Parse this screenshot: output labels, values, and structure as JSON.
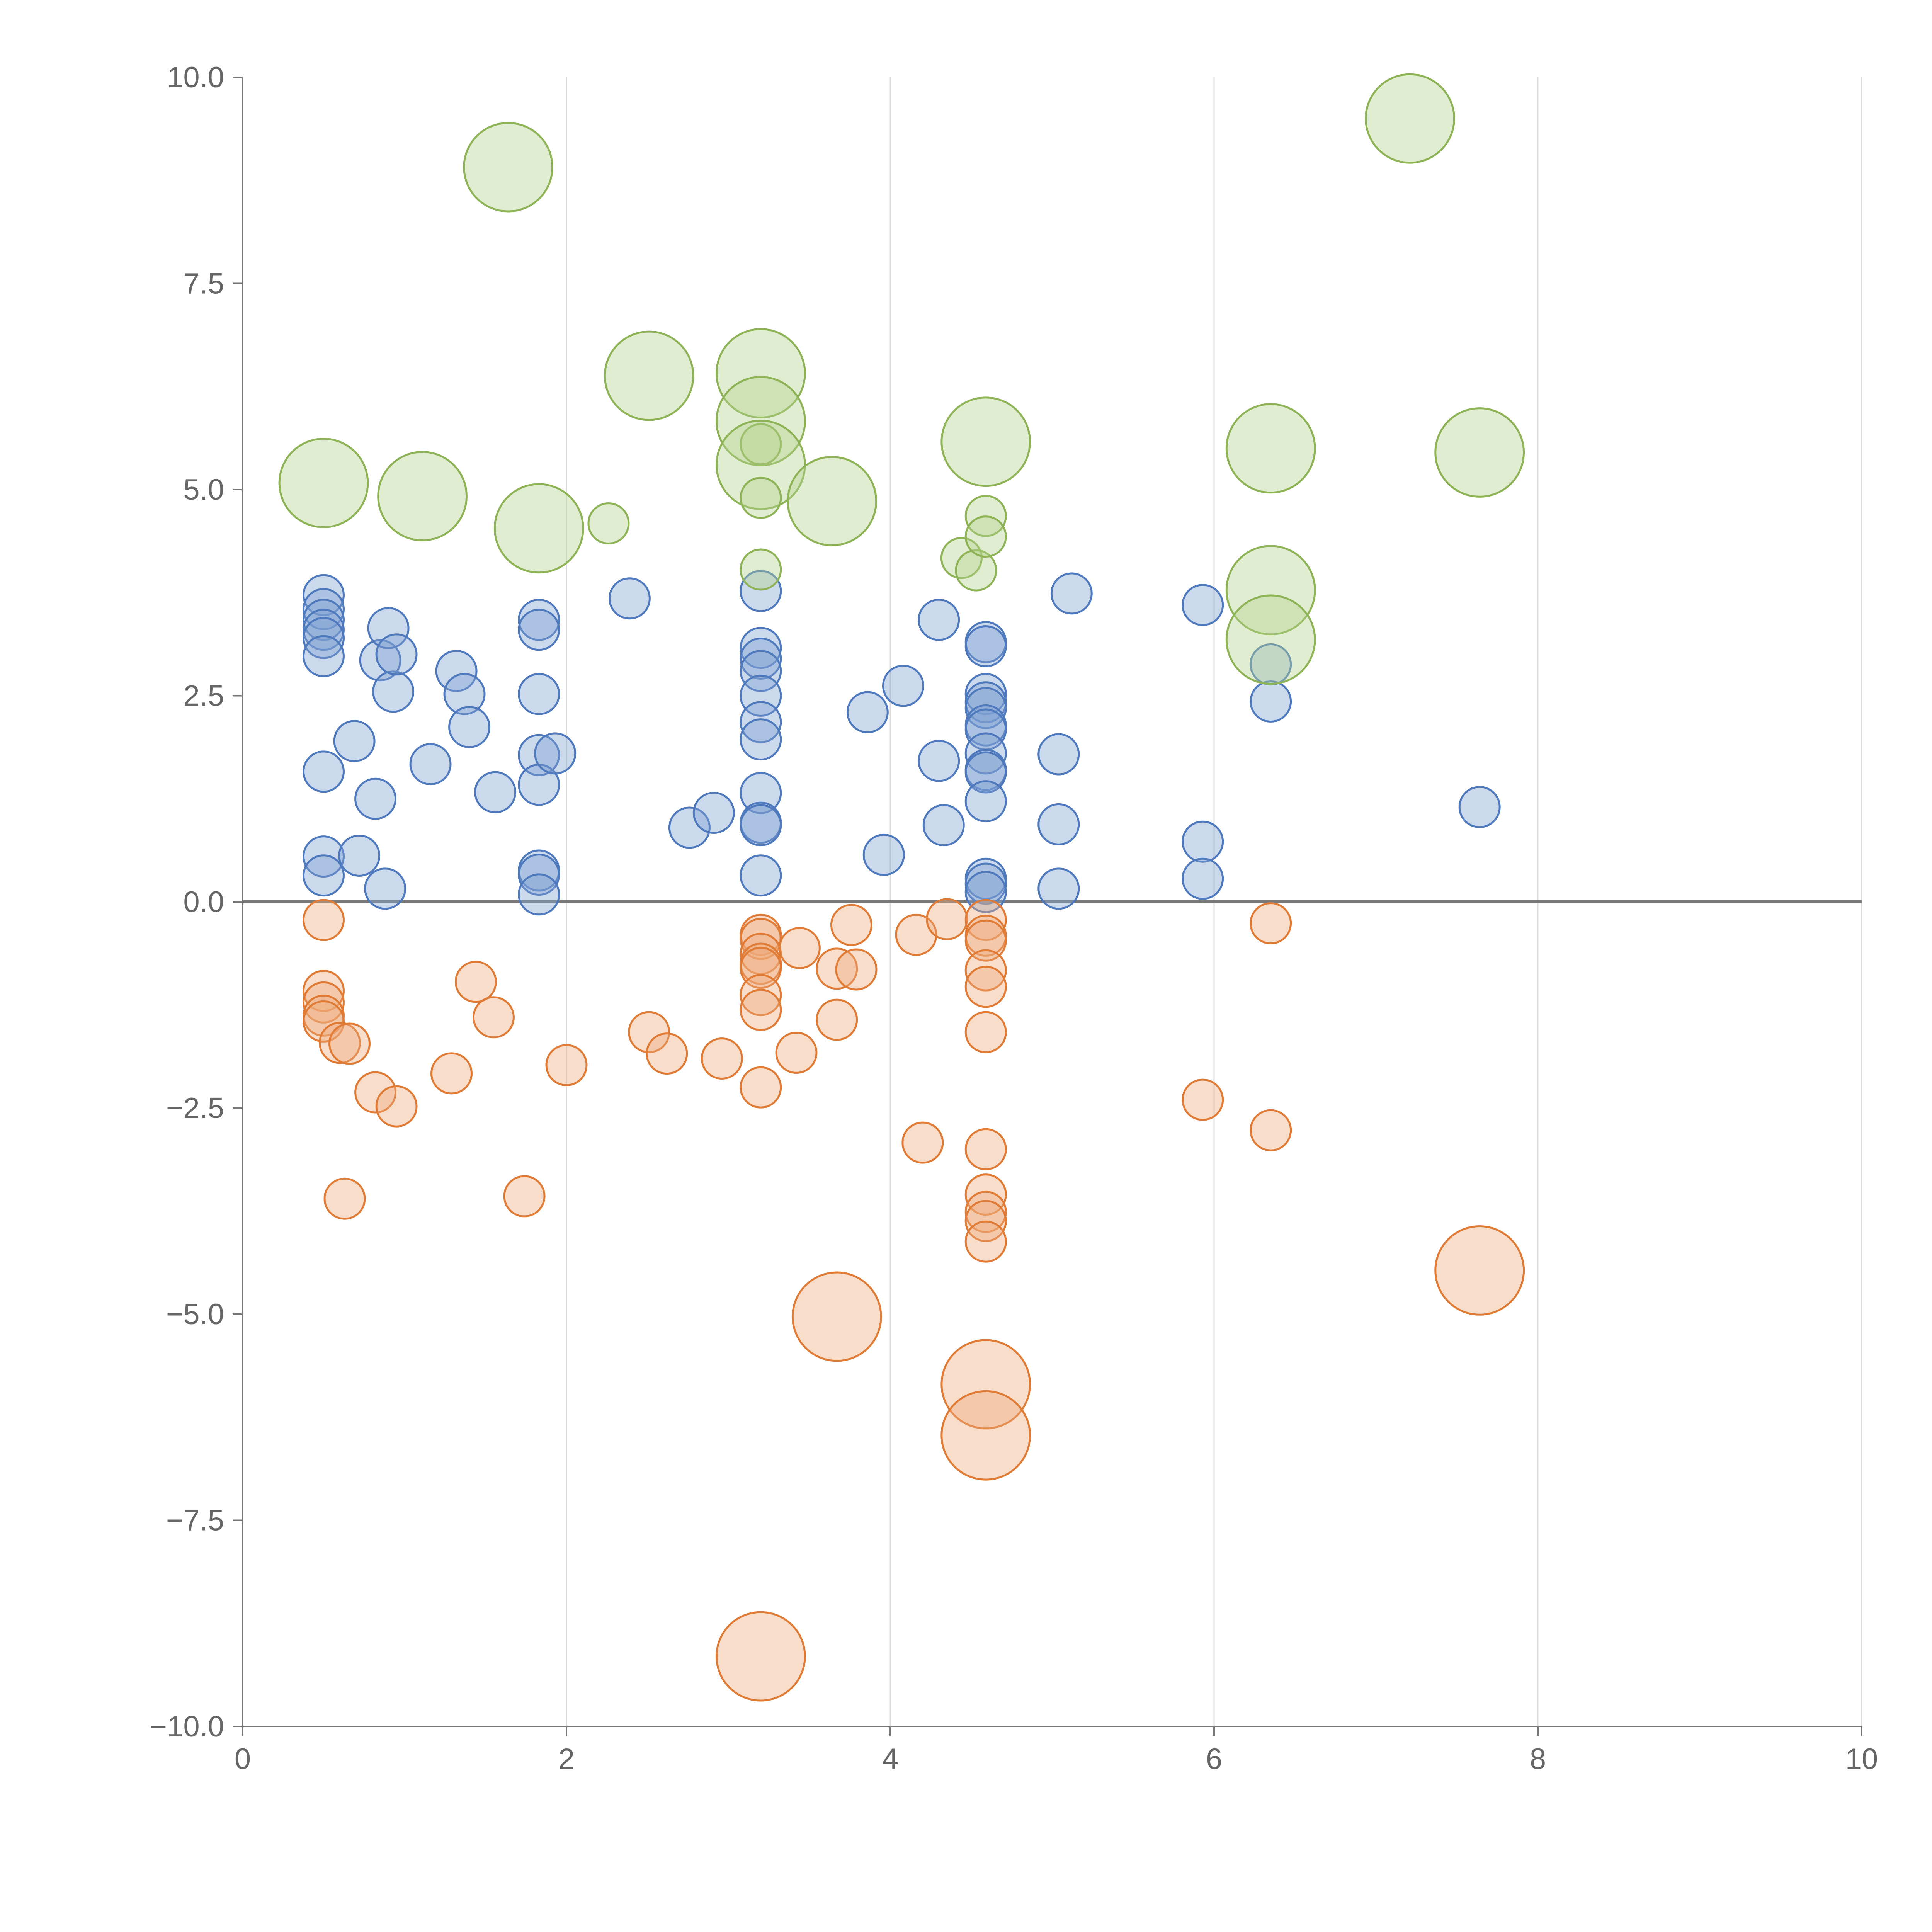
{
  "chart_data": {
    "type": "scatter",
    "title": "",
    "xlabel": "",
    "ylabel": "",
    "xlim": [
      0,
      10
    ],
    "ylim": [
      -10,
      10
    ],
    "x_ticks": [
      "0",
      "2",
      "4",
      "6",
      "8",
      "10"
    ],
    "y_ticks": [
      "−10.0",
      "−7.5",
      "−5.0",
      "−2.5",
      "0.0",
      "2.5",
      "5.0",
      "7.5",
      "10.0"
    ],
    "x_tick_values": [
      0,
      2,
      4,
      6,
      8,
      10
    ],
    "y_tick_values": [
      -10,
      -7.5,
      -5,
      -2.5,
      0,
      2.5,
      5,
      7.5,
      10
    ],
    "grid": "vertical",
    "zero_line": true,
    "colors": {
      "blue": "#7c9fd3",
      "blue_stroke": "#4f79bd",
      "orange": "#eeab7a",
      "orange_stroke": "#e07b36",
      "green": "#b5d18c",
      "green_stroke": "#8db356",
      "axis": "#777777",
      "grid": "#dddddd",
      "text": "#666666"
    },
    "series": [
      {
        "name": "blue",
        "color_key": "blue",
        "points": [
          {
            "x": 0.5,
            "y": 3.72,
            "s": 1
          },
          {
            "x": 0.5,
            "y": 3.55,
            "s": 1
          },
          {
            "x": 0.5,
            "y": 3.42,
            "s": 1
          },
          {
            "x": 0.5,
            "y": 3.3,
            "s": 1
          },
          {
            "x": 0.5,
            "y": 3.2,
            "s": 1
          },
          {
            "x": 0.5,
            "y": 2.98,
            "s": 1
          },
          {
            "x": 0.5,
            "y": 1.58,
            "s": 1
          },
          {
            "x": 0.5,
            "y": 0.55,
            "s": 1
          },
          {
            "x": 0.5,
            "y": 0.32,
            "s": 1
          },
          {
            "x": 0.69,
            "y": 1.95,
            "s": 1
          },
          {
            "x": 0.72,
            "y": 0.56,
            "s": 1
          },
          {
            "x": 0.82,
            "y": 1.25,
            "s": 1
          },
          {
            "x": 0.85,
            "y": 2.93,
            "s": 1
          },
          {
            "x": 0.88,
            "y": 0.16,
            "s": 1
          },
          {
            "x": 0.9,
            "y": 3.32,
            "s": 1
          },
          {
            "x": 0.93,
            "y": 2.55,
            "s": 1
          },
          {
            "x": 0.95,
            "y": 3.0,
            "s": 1
          },
          {
            "x": 1.16,
            "y": 1.67,
            "s": 1
          },
          {
            "x": 1.32,
            "y": 2.8,
            "s": 1
          },
          {
            "x": 1.37,
            "y": 2.52,
            "s": 1
          },
          {
            "x": 1.4,
            "y": 2.12,
            "s": 1
          },
          {
            "x": 1.56,
            "y": 1.33,
            "s": 1
          },
          {
            "x": 1.83,
            "y": 3.42,
            "s": 1
          },
          {
            "x": 1.83,
            "y": 3.3,
            "s": 1
          },
          {
            "x": 1.83,
            "y": 2.52,
            "s": 1
          },
          {
            "x": 1.83,
            "y": 1.78,
            "s": 1
          },
          {
            "x": 1.83,
            "y": 1.42,
            "s": 1
          },
          {
            "x": 1.83,
            "y": 0.38,
            "s": 1
          },
          {
            "x": 1.83,
            "y": 0.33,
            "s": 1
          },
          {
            "x": 1.83,
            "y": 0.09,
            "s": 1
          },
          {
            "x": 1.93,
            "y": 1.8,
            "s": 1
          },
          {
            "x": 2.39,
            "y": 3.68,
            "s": 1
          },
          {
            "x": 2.76,
            "y": 0.9,
            "s": 1
          },
          {
            "x": 2.91,
            "y": 1.08,
            "s": 1
          },
          {
            "x": 3.2,
            "y": 3.77,
            "s": 1
          },
          {
            "x": 3.2,
            "y": 3.08,
            "s": 1
          },
          {
            "x": 3.2,
            "y": 2.95,
            "s": 1
          },
          {
            "x": 3.2,
            "y": 2.8,
            "s": 1
          },
          {
            "x": 3.2,
            "y": 2.5,
            "s": 1
          },
          {
            "x": 3.2,
            "y": 2.18,
            "s": 1
          },
          {
            "x": 3.2,
            "y": 1.97,
            "s": 1
          },
          {
            "x": 3.2,
            "y": 1.32,
            "s": 1
          },
          {
            "x": 3.2,
            "y": 0.96,
            "s": 1
          },
          {
            "x": 3.2,
            "y": 0.93,
            "s": 1
          },
          {
            "x": 3.2,
            "y": 0.32,
            "s": 1
          },
          {
            "x": 3.86,
            "y": 2.3,
            "s": 1
          },
          {
            "x": 3.96,
            "y": 0.57,
            "s": 1
          },
          {
            "x": 4.08,
            "y": 2.62,
            "s": 1
          },
          {
            "x": 4.3,
            "y": 3.42,
            "s": 1
          },
          {
            "x": 4.3,
            "y": 1.71,
            "s": 1
          },
          {
            "x": 4.33,
            "y": 0.93,
            "s": 1
          },
          {
            "x": 4.59,
            "y": 3.15,
            "s": 1
          },
          {
            "x": 4.59,
            "y": 3.1,
            "s": 1
          },
          {
            "x": 4.59,
            "y": 2.52,
            "s": 1
          },
          {
            "x": 4.59,
            "y": 2.42,
            "s": 1
          },
          {
            "x": 4.59,
            "y": 2.35,
            "s": 1
          },
          {
            "x": 4.59,
            "y": 2.14,
            "s": 1
          },
          {
            "x": 4.59,
            "y": 2.09,
            "s": 1
          },
          {
            "x": 4.59,
            "y": 1.8,
            "s": 1
          },
          {
            "x": 4.59,
            "y": 1.6,
            "s": 1
          },
          {
            "x": 4.59,
            "y": 1.57,
            "s": 1
          },
          {
            "x": 4.59,
            "y": 1.22,
            "s": 1
          },
          {
            "x": 4.59,
            "y": 0.28,
            "s": 1
          },
          {
            "x": 4.59,
            "y": 0.22,
            "s": 1
          },
          {
            "x": 4.59,
            "y": 0.12,
            "s": 1
          },
          {
            "x": 5.04,
            "y": 1.79,
            "s": 1
          },
          {
            "x": 5.04,
            "y": 0.94,
            "s": 1
          },
          {
            "x": 5.04,
            "y": 0.16,
            "s": 1
          },
          {
            "x": 5.12,
            "y": 3.74,
            "s": 1
          },
          {
            "x": 5.93,
            "y": 3.6,
            "s": 1
          },
          {
            "x": 5.93,
            "y": 0.73,
            "s": 1
          },
          {
            "x": 5.93,
            "y": 0.28,
            "s": 1
          },
          {
            "x": 6.35,
            "y": 2.88,
            "s": 1
          },
          {
            "x": 6.35,
            "y": 2.43,
            "s": 1
          },
          {
            "x": 7.64,
            "y": 1.15,
            "s": 1
          }
        ]
      },
      {
        "name": "orange",
        "color_key": "orange",
        "points": [
          {
            "x": 0.5,
            "y": -0.22,
            "s": 1
          },
          {
            "x": 0.5,
            "y": -1.08,
            "s": 1
          },
          {
            "x": 0.5,
            "y": -1.22,
            "s": 1
          },
          {
            "x": 0.5,
            "y": -1.38,
            "s": 1
          },
          {
            "x": 0.5,
            "y": -1.45,
            "s": 1
          },
          {
            "x": 0.6,
            "y": -1.71,
            "s": 1
          },
          {
            "x": 0.63,
            "y": -3.6,
            "s": 1
          },
          {
            "x": 0.66,
            "y": -1.72,
            "s": 1
          },
          {
            "x": 0.82,
            "y": -2.31,
            "s": 1
          },
          {
            "x": 0.95,
            "y": -2.48,
            "s": 1
          },
          {
            "x": 1.29,
            "y": -2.08,
            "s": 1
          },
          {
            "x": 1.44,
            "y": -0.97,
            "s": 1
          },
          {
            "x": 1.55,
            "y": -1.4,
            "s": 1
          },
          {
            "x": 1.74,
            "y": -3.57,
            "s": 1
          },
          {
            "x": 2.0,
            "y": -1.98,
            "s": 1
          },
          {
            "x": 2.51,
            "y": -1.58,
            "s": 1
          },
          {
            "x": 2.62,
            "y": -1.84,
            "s": 1
          },
          {
            "x": 2.96,
            "y": -1.9,
            "s": 1
          },
          {
            "x": 3.2,
            "y": -0.4,
            "s": 1
          },
          {
            "x": 3.2,
            "y": -0.45,
            "s": 1
          },
          {
            "x": 3.2,
            "y": -0.63,
            "s": 1
          },
          {
            "x": 3.2,
            "y": -0.75,
            "s": 1
          },
          {
            "x": 3.2,
            "y": -0.8,
            "s": 1
          },
          {
            "x": 3.2,
            "y": -1.13,
            "s": 1
          },
          {
            "x": 3.2,
            "y": -1.31,
            "s": 1
          },
          {
            "x": 3.2,
            "y": -2.25,
            "s": 1
          },
          {
            "x": 3.2,
            "y": -9.15,
            "s": 2.2
          },
          {
            "x": 3.42,
            "y": -1.83,
            "s": 1
          },
          {
            "x": 3.44,
            "y": -0.56,
            "s": 1
          },
          {
            "x": 3.67,
            "y": -0.81,
            "s": 1
          },
          {
            "x": 3.67,
            "y": -1.43,
            "s": 1
          },
          {
            "x": 3.67,
            "y": -5.03,
            "s": 2.2
          },
          {
            "x": 3.76,
            "y": -0.28,
            "s": 1
          },
          {
            "x": 3.79,
            "y": -0.82,
            "s": 1
          },
          {
            "x": 4.16,
            "y": -0.4,
            "s": 1
          },
          {
            "x": 4.2,
            "y": -2.92,
            "s": 1
          },
          {
            "x": 4.35,
            "y": -0.21,
            "s": 1
          },
          {
            "x": 4.59,
            "y": -0.22,
            "s": 1
          },
          {
            "x": 4.59,
            "y": -0.41,
            "s": 1
          },
          {
            "x": 4.59,
            "y": -0.47,
            "s": 1
          },
          {
            "x": 4.59,
            "y": -0.83,
            "s": 1
          },
          {
            "x": 4.59,
            "y": -1.03,
            "s": 1
          },
          {
            "x": 4.59,
            "y": -1.58,
            "s": 1
          },
          {
            "x": 4.59,
            "y": -3.0,
            "s": 1
          },
          {
            "x": 4.59,
            "y": -3.55,
            "s": 1
          },
          {
            "x": 4.59,
            "y": -3.76,
            "s": 1
          },
          {
            "x": 4.59,
            "y": -3.87,
            "s": 1
          },
          {
            "x": 4.59,
            "y": -4.12,
            "s": 1
          },
          {
            "x": 4.59,
            "y": -5.85,
            "s": 2.2
          },
          {
            "x": 4.59,
            "y": -6.47,
            "s": 2.2
          },
          {
            "x": 5.93,
            "y": -2.4,
            "s": 1
          },
          {
            "x": 6.35,
            "y": -0.26,
            "s": 1
          },
          {
            "x": 6.35,
            "y": -2.77,
            "s": 1
          },
          {
            "x": 7.64,
            "y": -4.47,
            "s": 2.2
          }
        ]
      },
      {
        "name": "green",
        "color_key": "green",
        "points": [
          {
            "x": 0.5,
            "y": 5.08,
            "s": 2.2
          },
          {
            "x": 1.11,
            "y": 4.92,
            "s": 2.2
          },
          {
            "x": 1.64,
            "y": 8.91,
            "s": 2.2
          },
          {
            "x": 1.83,
            "y": 4.53,
            "s": 2.2
          },
          {
            "x": 2.26,
            "y": 4.59,
            "s": 1
          },
          {
            "x": 2.51,
            "y": 6.38,
            "s": 2.2
          },
          {
            "x": 3.2,
            "y": 6.41,
            "s": 2.2
          },
          {
            "x": 3.2,
            "y": 5.83,
            "s": 2.2
          },
          {
            "x": 3.2,
            "y": 5.55,
            "s": 1
          },
          {
            "x": 3.2,
            "y": 5.3,
            "s": 2.2
          },
          {
            "x": 3.2,
            "y": 4.9,
            "s": 1
          },
          {
            "x": 3.2,
            "y": 4.03,
            "s": 1
          },
          {
            "x": 3.64,
            "y": 4.86,
            "s": 2.2
          },
          {
            "x": 4.44,
            "y": 4.17,
            "s": 1
          },
          {
            "x": 4.53,
            "y": 4.02,
            "s": 1
          },
          {
            "x": 4.59,
            "y": 5.58,
            "s": 2.2
          },
          {
            "x": 4.59,
            "y": 4.68,
            "s": 1
          },
          {
            "x": 4.59,
            "y": 4.43,
            "s": 1
          },
          {
            "x": 6.35,
            "y": 5.5,
            "s": 2.2
          },
          {
            "x": 6.35,
            "y": 3.78,
            "s": 2.2
          },
          {
            "x": 6.35,
            "y": 3.18,
            "s": 2.2
          },
          {
            "x": 7.21,
            "y": 9.5,
            "s": 2.2
          },
          {
            "x": 7.64,
            "y": 5.45,
            "s": 2.2
          }
        ]
      }
    ]
  }
}
